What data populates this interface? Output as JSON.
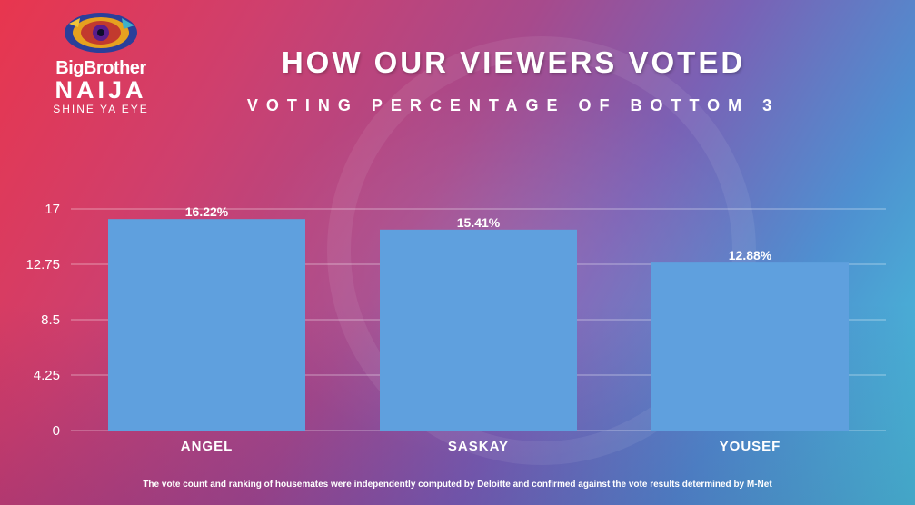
{
  "brand": {
    "line1": "BigBrother",
    "line2": "NAIJA",
    "line3": "SHINE YA EYE"
  },
  "colors": {
    "bar": "#5fa0de",
    "text": "#ffffff",
    "grid": "rgba(255,255,255,0.45)"
  },
  "footer": "The vote count and ranking of housemates were independently computed by Deloitte and confirmed against the vote results determined by M-Net",
  "chart_data": {
    "type": "bar",
    "title": "HOW OUR VIEWERS VOTED",
    "subtitle": "VOTING PERCENTAGE OF BOTTOM 3",
    "categories": [
      "ANGEL",
      "SASKAY",
      "YOUSEF"
    ],
    "values": [
      16.22,
      15.41,
      12.88
    ],
    "data_labels": [
      "16.22%",
      "15.41%",
      "12.88%"
    ],
    "yticks": [
      0,
      4.25,
      8.5,
      12.75,
      17
    ],
    "ytick_labels": [
      "0",
      "4.25",
      "8.5",
      "12.75",
      "17"
    ],
    "ylim": [
      0,
      17
    ],
    "grid": true,
    "xlabel": "",
    "ylabel": ""
  }
}
